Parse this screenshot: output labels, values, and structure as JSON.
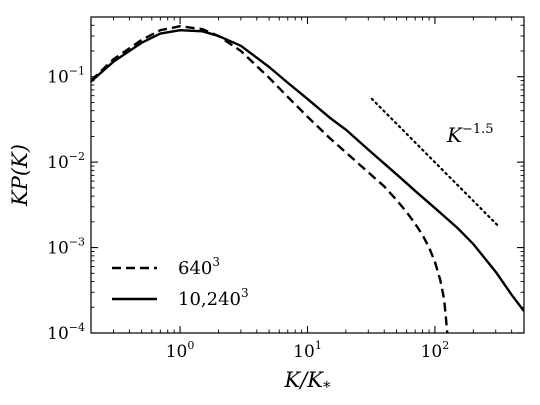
{
  "chart_data": {
    "type": "line",
    "xlabel": "K/K",
    "xlabel_sub": "*",
    "ylabel": "KP(K)",
    "xscale": "log",
    "yscale": "log",
    "xlim": [
      0.2,
      500
    ],
    "ylim": [
      0.0001,
      0.5
    ],
    "grid": false,
    "legend_position": "lower-left",
    "x_ticks": [
      {
        "value": 1,
        "base": "10",
        "exp": "0"
      },
      {
        "value": 10,
        "base": "10",
        "exp": "1"
      },
      {
        "value": 100,
        "base": "10",
        "exp": "2"
      }
    ],
    "y_ticks": [
      {
        "value": 0.0001,
        "base": "10",
        "exp": "−4"
      },
      {
        "value": 0.001,
        "base": "10",
        "exp": "−3"
      },
      {
        "value": 0.01,
        "base": "10",
        "exp": "−2"
      },
      {
        "value": 0.1,
        "base": "10",
        "exp": "−1"
      }
    ],
    "series": [
      {
        "name": "640",
        "name_sup": "3",
        "style": "dashed",
        "color": "#000000",
        "x": [
          0.2,
          0.3,
          0.5,
          0.7,
          1.0,
          1.5,
          2.0,
          3.0,
          5.0,
          7.0,
          10,
          15,
          20,
          30,
          40,
          50,
          60,
          70,
          80,
          90,
          100,
          110,
          118,
          122,
          125
        ],
        "y": [
          0.09,
          0.16,
          0.27,
          0.35,
          0.39,
          0.36,
          0.3,
          0.2,
          0.097,
          0.058,
          0.034,
          0.019,
          0.013,
          0.0076,
          0.0052,
          0.0036,
          0.0026,
          0.0019,
          0.0014,
          0.001,
          0.00068,
          0.00042,
          0.00025,
          0.00015,
          0.0001
        ]
      },
      {
        "name": "10,240",
        "name_sup": "3",
        "style": "solid",
        "color": "#000000",
        "x": [
          0.2,
          0.3,
          0.5,
          0.7,
          1.0,
          1.5,
          2.0,
          3.0,
          5.0,
          7.0,
          10,
          15,
          20,
          30,
          50,
          70,
          100,
          150,
          200,
          300,
          400,
          500
        ],
        "y": [
          0.088,
          0.15,
          0.25,
          0.32,
          0.35,
          0.34,
          0.3,
          0.23,
          0.13,
          0.085,
          0.055,
          0.033,
          0.024,
          0.014,
          0.0072,
          0.0046,
          0.0029,
          0.0017,
          0.0011,
          0.00052,
          0.00028,
          0.00018
        ]
      }
    ],
    "reference_line": {
      "label": "K",
      "label_sup": "−1.5",
      "style": "dotted",
      "x": [
        32,
        320
      ],
      "y": [
        0.055,
        0.00174
      ]
    }
  }
}
